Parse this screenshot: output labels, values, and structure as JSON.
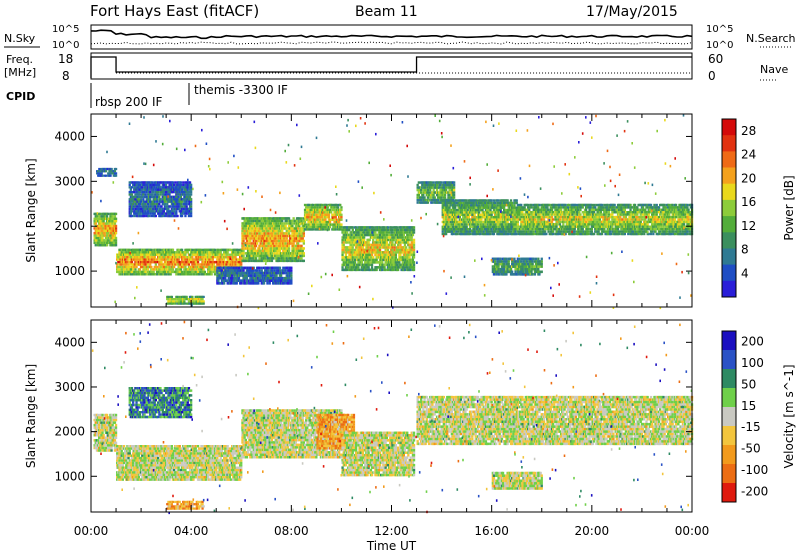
{
  "header": {
    "station": "Fort Hays East (fitACF)",
    "beam": "Beam 11",
    "date": "17/May/2015"
  },
  "summary_panel": {
    "left_top_label": "N.Sky",
    "left_top_ticks": [
      "10^5",
      "10^0"
    ],
    "right_top_label": "N.Search",
    "right_top_ticks": [
      "10^5",
      "10^0"
    ],
    "left_mid_label_1": "Freq.",
    "left_mid_label_2": "[MHz]",
    "left_mid_ticks": [
      "18",
      "8"
    ],
    "right_mid_label": "Nave",
    "right_mid_ticks": [
      "60",
      "0"
    ],
    "cpid_label": "CPID",
    "cpid_entries": [
      "rbsp 200 IF",
      "themis -3300 IF"
    ]
  },
  "colors": {
    "power": [
      "#2a1ed8",
      "#1f4ec4",
      "#2f7a93",
      "#3b8f5e",
      "#53ad3a",
      "#8dcc3a",
      "#e9d81c",
      "#f4a11c",
      "#ef6a16",
      "#e23210",
      "#d40a0a"
    ],
    "velocity": [
      "#1b0fc0",
      "#2a52c6",
      "#2e8a63",
      "#6fd04a",
      "#c9c9c2",
      "#f3c53d",
      "#f29a1c",
      "#ec6d13",
      "#df1a0e"
    ]
  },
  "chart_data": [
    {
      "type": "heatmap",
      "title": "Power",
      "xlabel": "",
      "ylabel": "Slant Range [km]",
      "x_ticks": [
        "00:00",
        "04:00",
        "08:00",
        "12:00",
        "16:00",
        "20:00",
        "00:00"
      ],
      "xlim_hours": [
        0,
        24
      ],
      "ylim": [
        200,
        4500
      ],
      "y_ticks": [
        1000,
        2000,
        3000,
        4000
      ],
      "colorbar": {
        "label": "Power [dB]",
        "ticks": [
          4,
          8,
          12,
          16,
          20,
          24,
          28
        ],
        "range": [
          0,
          30
        ]
      },
      "bands": [
        {
          "x": [
            0.1,
            1.0
          ],
          "y": [
            1550,
            2300
          ],
          "level": 0.75
        },
        {
          "x": [
            0.2,
            1.0
          ],
          "y": [
            3100,
            3300
          ],
          "level": 0.3
        },
        {
          "x": [
            1.0,
            6.0
          ],
          "y": [
            900,
            1500
          ],
          "level": 0.8
        },
        {
          "x": [
            6.0,
            8.5
          ],
          "y": [
            1200,
            2200
          ],
          "level": 0.75
        },
        {
          "x": [
            8.5,
            10.0
          ],
          "y": [
            1900,
            2500
          ],
          "level": 0.7
        },
        {
          "x": [
            10.0,
            12.9
          ],
          "y": [
            1000,
            2000
          ],
          "level": 0.65
        },
        {
          "x": [
            1.5,
            4.0
          ],
          "y": [
            2200,
            3000
          ],
          "level": 0.25
        },
        {
          "x": [
            3.0,
            4.5
          ],
          "y": [
            250,
            450
          ],
          "level": 0.7
        },
        {
          "x": [
            5.0,
            8.0
          ],
          "y": [
            700,
            1100
          ],
          "level": 0.25
        },
        {
          "x": [
            13.0,
            14.5
          ],
          "y": [
            2500,
            3000
          ],
          "level": 0.5
        },
        {
          "x": [
            14.0,
            17.0
          ],
          "y": [
            1800,
            2600
          ],
          "level": 0.55
        },
        {
          "x": [
            16.0,
            18.0
          ],
          "y": [
            900,
            1300
          ],
          "level": 0.45
        },
        {
          "x": [
            17.0,
            24.0
          ],
          "y": [
            1800,
            2500
          ],
          "level": 0.6
        }
      ],
      "data_gap_hours": [
        12.9,
        13.0
      ]
    },
    {
      "type": "heatmap",
      "title": "Velocity",
      "xlabel": "Time UT",
      "ylabel": "Slant Range [km]",
      "x_ticks": [
        "00:00",
        "04:00",
        "08:00",
        "12:00",
        "16:00",
        "20:00",
        "00:00"
      ],
      "xlim_hours": [
        0,
        24
      ],
      "ylim": [
        200,
        4500
      ],
      "y_ticks": [
        1000,
        2000,
        3000,
        4000
      ],
      "colorbar": {
        "label": "Velocity [m s^-1]",
        "ticks": [
          200,
          100,
          50,
          15,
          -15,
          -50,
          -100,
          -200
        ],
        "range": [
          -250,
          250
        ]
      },
      "bands": [
        {
          "x": [
            0.1,
            1.0
          ],
          "y": [
            1550,
            2400
          ],
          "level": 0.5
        },
        {
          "x": [
            1.0,
            6.0
          ],
          "y": [
            900,
            1700
          ],
          "level": 0.5
        },
        {
          "x": [
            6.0,
            10.0
          ],
          "y": [
            1400,
            2500
          ],
          "level": 0.5
        },
        {
          "x": [
            9.0,
            10.5
          ],
          "y": [
            1600,
            2400
          ],
          "level": 0.7
        },
        {
          "x": [
            10.0,
            12.9
          ],
          "y": [
            1000,
            2000
          ],
          "level": 0.5
        },
        {
          "x": [
            1.5,
            4.0
          ],
          "y": [
            2300,
            3000
          ],
          "level": 0.25
        },
        {
          "x": [
            3.0,
            4.5
          ],
          "y": [
            250,
            450
          ],
          "level": 0.7
        },
        {
          "x": [
            13.0,
            24.0
          ],
          "y": [
            1700,
            2800
          ],
          "level": 0.5
        },
        {
          "x": [
            16.0,
            18.0
          ],
          "y": [
            700,
            1100
          ],
          "level": 0.5
        }
      ],
      "data_gap_hours": [
        12.9,
        13.0
      ]
    }
  ]
}
